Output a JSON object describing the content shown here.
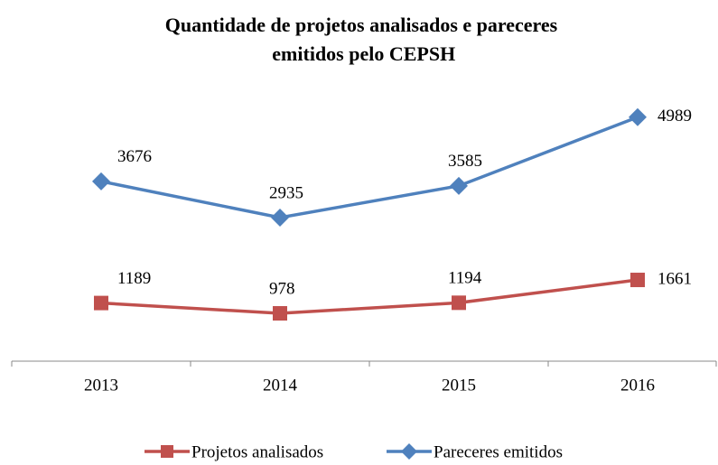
{
  "chart_data": {
    "type": "line",
    "title": "Quantidade de projetos analisados e pareceres emitidos pelo CEPSH",
    "categories": [
      "2013",
      "2014",
      "2015",
      "2016"
    ],
    "series": [
      {
        "name": "Projetos analisados",
        "color": "#c0504d",
        "marker": "square",
        "values": [
          1189,
          978,
          1194,
          1661
        ]
      },
      {
        "name": "Pareceres emitidos",
        "color": "#4f81bd",
        "marker": "diamond",
        "values": [
          3676,
          2935,
          3585,
          4989
        ]
      }
    ],
    "ylim": [
      0,
      6000
    ],
    "legend": "bottom",
    "grid": false
  }
}
